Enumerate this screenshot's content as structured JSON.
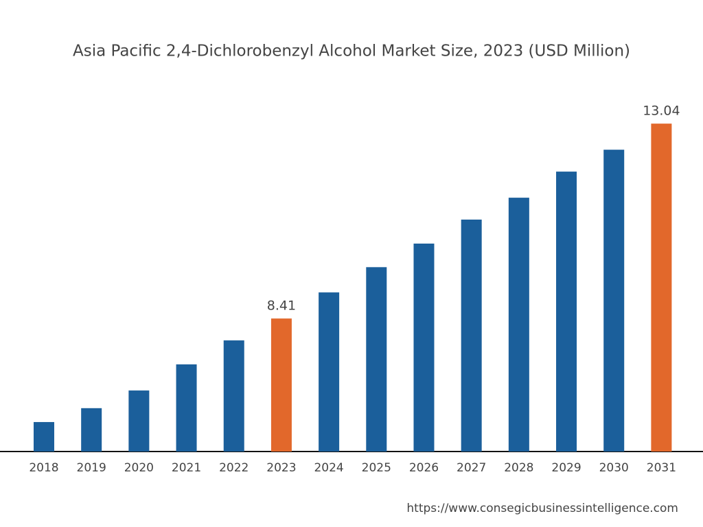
{
  "chart_data": {
    "type": "bar",
    "title": "Asia Pacific 2,4-Dichlorobenzyl Alcohol Market Size, 2023 (USD Million)",
    "categories": [
      "2018",
      "2019",
      "2020",
      "2021",
      "2022",
      "2023",
      "2024",
      "2025",
      "2026",
      "2027",
      "2028",
      "2029",
      "2030",
      "2031"
    ],
    "values": [
      5.95,
      6.28,
      6.7,
      7.32,
      7.89,
      8.41,
      9.03,
      9.63,
      10.19,
      10.76,
      11.28,
      11.9,
      12.42,
      13.04
    ],
    "value_labels": [
      null,
      null,
      null,
      null,
      null,
      "8.41",
      null,
      null,
      null,
      null,
      null,
      null,
      null,
      "13.04"
    ],
    "colors": [
      "#1b5f9b",
      "#1b5f9b",
      "#1b5f9b",
      "#1b5f9b",
      "#1b5f9b",
      "#e2682b",
      "#1b5f9b",
      "#1b5f9b",
      "#1b5f9b",
      "#1b5f9b",
      "#1b5f9b",
      "#1b5f9b",
      "#1b5f9b",
      "#e2682b"
    ],
    "ylim": [
      5.25,
      13.9
    ],
    "source": "https://www.consegicbusinessintelligence.com"
  }
}
